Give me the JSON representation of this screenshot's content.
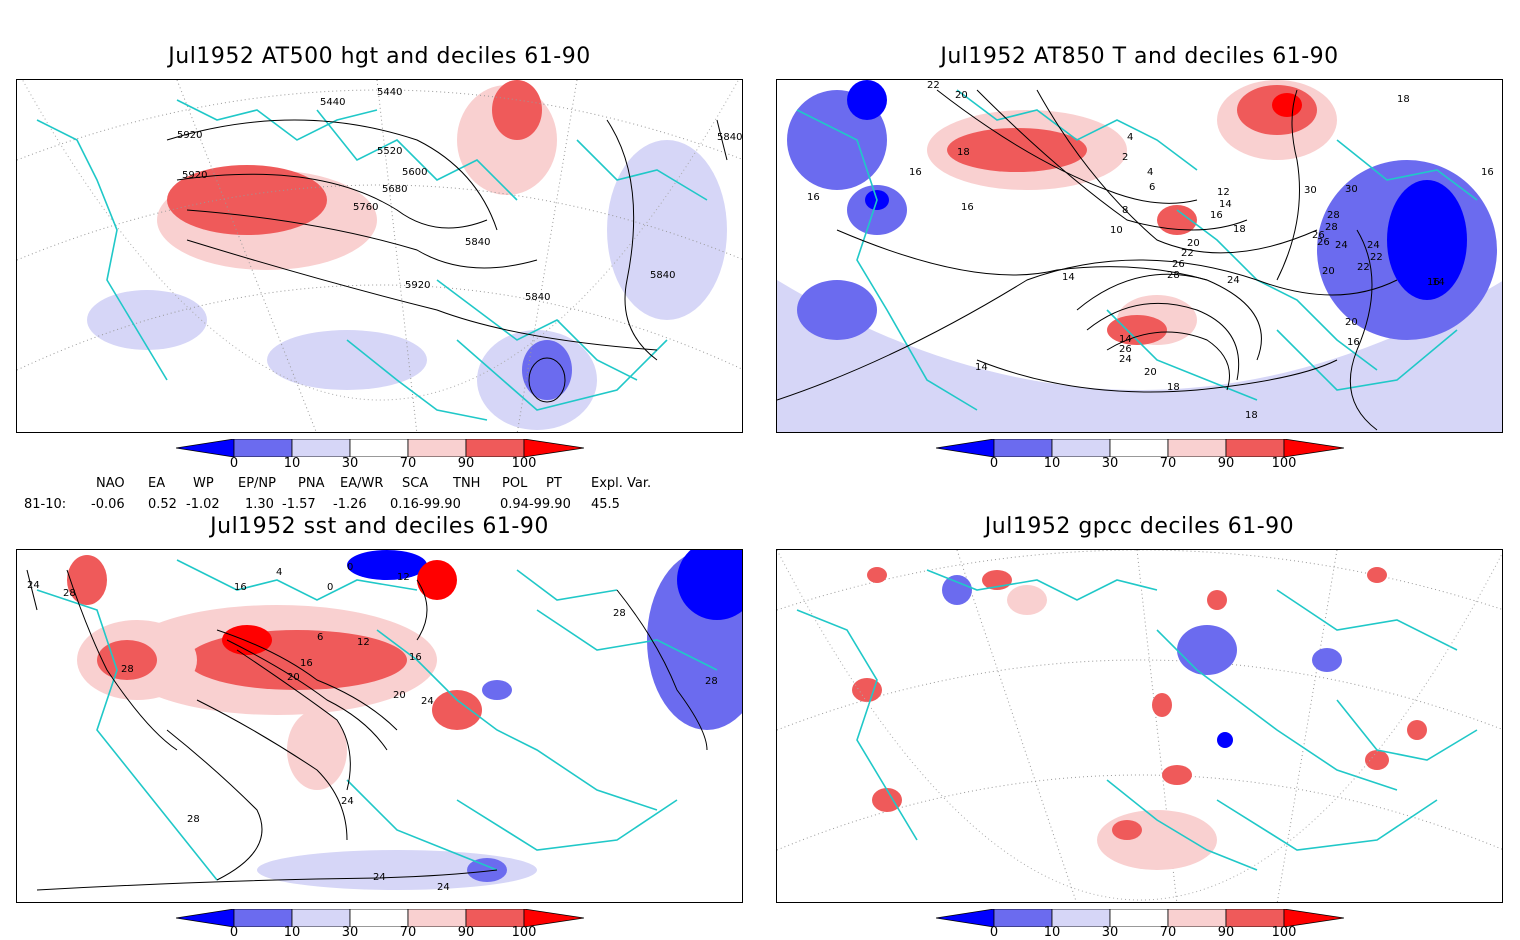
{
  "panels": [
    {
      "id": "p1",
      "title": "Jul1952 AT500 hgt and deciles 61-90",
      "contour_labels": [
        "5440",
        "5440",
        "5520",
        "5600",
        "5680",
        "5760",
        "5840",
        "5840",
        "5840",
        "5840",
        "5920",
        "5920",
        "5920"
      ]
    },
    {
      "id": "p2",
      "title": "Jul1952 AT850 T and deciles 61-90",
      "contour_labels": [
        "22",
        "20",
        "18",
        "16",
        "16",
        "16",
        "14",
        "14",
        "14",
        "10",
        "8",
        "4",
        "2",
        "6",
        "4",
        "12",
        "14",
        "16",
        "18",
        "20",
        "22",
        "26",
        "28",
        "24",
        "26",
        "28",
        "24",
        "22",
        "20",
        "30",
        "30",
        "28",
        "26",
        "24",
        "22",
        "20",
        "18",
        "16",
        "16",
        "18",
        "16",
        "14",
        "26",
        "24",
        "20",
        "18"
      ]
    },
    {
      "id": "p3",
      "title": "Jul1952 sst and deciles 61-90",
      "contour_labels": [
        "24",
        "28",
        "28",
        "16",
        "4",
        "0",
        "0",
        "12",
        "6",
        "12",
        "16",
        "16",
        "20",
        "20",
        "24",
        "24",
        "28",
        "28",
        "28",
        "24",
        "24"
      ]
    },
    {
      "id": "p4",
      "title": "Jul1952 gpcc deciles 61-90",
      "contour_labels": []
    }
  ],
  "colorbar": {
    "labels": [
      "0",
      "10",
      "30",
      "70",
      "90",
      "100"
    ],
    "colors": {
      "dark_blue": "#0000ff",
      "mid_blue": "#6b6bef",
      "light_blue": "#d6d6f7",
      "white": "#ffffff",
      "light_red": "#f9d0d0",
      "mid_red": "#ef5a5a",
      "dark_red": "#ff0000"
    }
  },
  "indices": {
    "header": [
      "NAO",
      "EA",
      "WP",
      "EP/NP",
      "PNA",
      "EA/WR",
      "SCA",
      "TNH",
      "POL",
      "PT",
      "Expl. Var."
    ],
    "row_label": "81-10:",
    "values": [
      "-0.06",
      "0.52",
      "-1.02",
      "1.30",
      "-1.57",
      "-1.26",
      "0.16-99.90",
      "",
      "0.94-99.90",
      "",
      "45.5"
    ]
  },
  "map_colors": {
    "coast": "#20c8c8",
    "contour": "#000000",
    "grid": "#999999"
  }
}
